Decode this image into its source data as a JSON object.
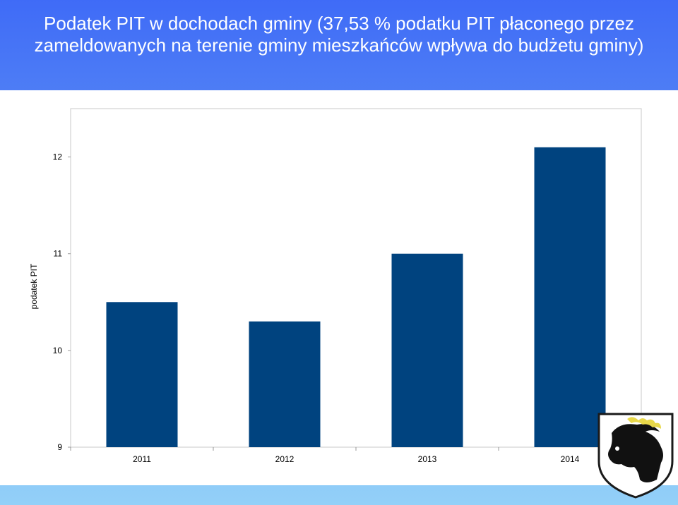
{
  "title": "Podatek PIT w dochodach gminy (37,53 % podatku PIT płaconego przez zameldowanych na terenie gminy mieszkańców wpływa do budżetu gminy)",
  "chart_data": {
    "type": "bar",
    "title": "Podatek PIT w dochodach gminy (37,53 % podatku PIT płaconego przez zameldowanych na terenie gminy mieszkańców wpływa do budżetu gminy)",
    "categories": [
      "2011",
      "2012",
      "2013",
      "2014"
    ],
    "series": [
      {
        "values": [
          10.5,
          10.3,
          11.0,
          12.1
        ]
      }
    ],
    "xlabel": "",
    "ylabel": "podatek PIT",
    "ylim": [
      9,
      12.5
    ],
    "yticks": [
      9,
      10,
      11,
      12
    ],
    "bar_color": "#00437f",
    "grid": false,
    "legend": "none"
  },
  "logo": {
    "icon": "coat-of-arms-horse-head"
  }
}
